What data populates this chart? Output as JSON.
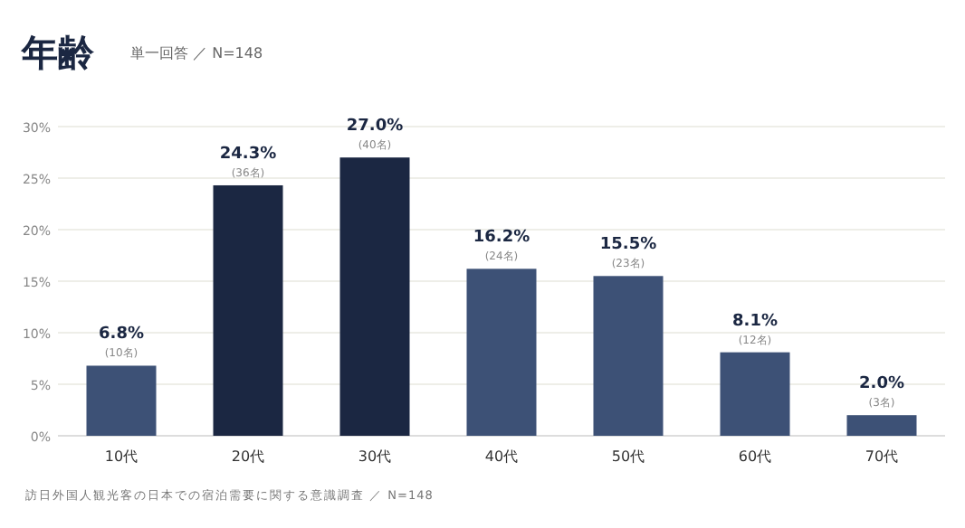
{
  "chart_data": {
    "type": "bar",
    "title": "年齢",
    "subtitle": "単一回答 ／ N=148",
    "categories": [
      "10代",
      "20代",
      "30代",
      "40代",
      "50代",
      "60代",
      "70代"
    ],
    "values": [
      6.8,
      24.3,
      27.0,
      16.2,
      15.5,
      8.1,
      2.0
    ],
    "colors": [
      "#3d5176",
      "#1b2742",
      "#1b2742",
      "#3d5176",
      "#3d5176",
      "#3d5176",
      "#3d5176"
    ],
    "value_labels": [
      "6.8%",
      "24.3%",
      "27.0%",
      "16.2%",
      "15.5%",
      "8.1%",
      "2.0%"
    ],
    "ylim": [
      0,
      30
    ],
    "yticks": [
      {
        "value": 0,
        "label": "0%"
      },
      {
        "value": 5,
        "label": "5%"
      },
      {
        "value": 10,
        "label": "10%"
      },
      {
        "value": 15,
        "label": "15%"
      },
      {
        "value": 20,
        "label": "20%"
      },
      {
        "value": 25,
        "label": "25%"
      },
      {
        "value": 30,
        "label": "30%"
      }
    ],
    "grid": "y",
    "annotations": [
      {
        "text": "(10名)",
        "x": "10代",
        "y": 6.8
      },
      {
        "text": "(36名)",
        "x": "20代",
        "y": 24.3
      },
      {
        "text": "(40名)",
        "x": "30代",
        "y": 27.0
      },
      {
        "text": "(24名)",
        "x": "40代",
        "y": 16.2
      },
      {
        "text": "(23名)",
        "x": "50代",
        "y": 15.5
      },
      {
        "text": "(12名)",
        "x": "60代",
        "y": 8.1
      },
      {
        "text": "(3名)",
        "x": "70代",
        "y": 2.0
      },
      "訪日外国人観光客の日本での宿泊需要に関する意識調査 ／ N=148"
    ]
  }
}
